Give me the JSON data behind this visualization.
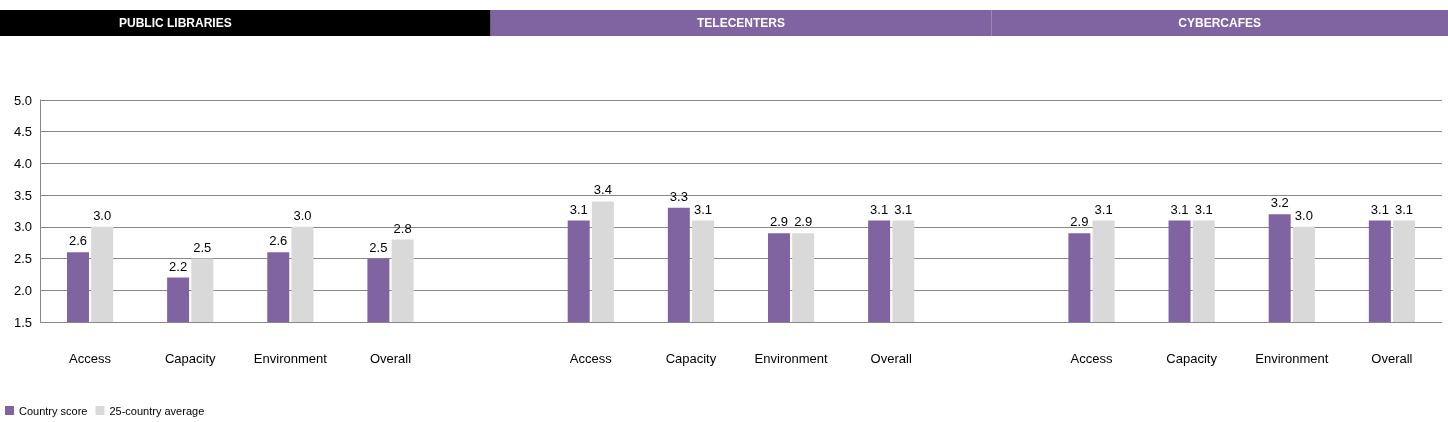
{
  "chart_data": {
    "type": "bar",
    "annotations": [
      "PUBLIC LIBRARIES",
      "TELECENTERS",
      "CYBERCAFES"
    ],
    "categories": [
      "Access",
      "Capacity",
      "Environment",
      "Overall",
      null,
      "Access",
      "Capacity",
      "Environment",
      "Overall",
      null,
      "Access",
      "Capacity",
      "Environment",
      "Overall"
    ],
    "series": [
      {
        "name": "Country score",
        "color": "#8064a2",
        "values": [
          2.6,
          2.2,
          2.6,
          2.5,
          null,
          3.1,
          3.3,
          2.9,
          3.1,
          null,
          2.9,
          3.1,
          3.2,
          3.1
        ],
        "value_labels": [
          "2.6",
          "2.2",
          "2.6",
          "2.5",
          null,
          "3.1",
          "3.3",
          "2.9",
          "3.1",
          null,
          "2.9",
          "3.1",
          "3.2",
          "3.1"
        ]
      },
      {
        "name": "25-country average",
        "color": "#d9d9d9",
        "values": [
          3.0,
          2.5,
          3.0,
          2.8,
          null,
          3.4,
          3.1,
          2.9,
          3.1,
          null,
          3.1,
          3.1,
          3.0,
          3.1
        ],
        "value_labels": [
          "3.0",
          "2.5",
          "3.0",
          "2.8",
          null,
          "3.4",
          "3.1",
          "2.9",
          "3.1",
          null,
          "3.1",
          "3.1",
          "3.0",
          "3.1"
        ]
      }
    ],
    "ylim": [
      1.5,
      5.0
    ],
    "yticks": [
      {
        "value": 1.5,
        "label": "1.5"
      },
      {
        "value": 2,
        "label": "2.0"
      },
      {
        "value": 2.5,
        "label": "2.5"
      },
      {
        "value": 3,
        "label": "3.0"
      },
      {
        "value": 3.5,
        "label": "3.5"
      },
      {
        "value": 4,
        "label": "4.0"
      },
      {
        "value": 4.5,
        "label": "4.5"
      },
      {
        "value": 5,
        "label": "5.0"
      }
    ],
    "grid": "y",
    "legend": "bottom left"
  }
}
